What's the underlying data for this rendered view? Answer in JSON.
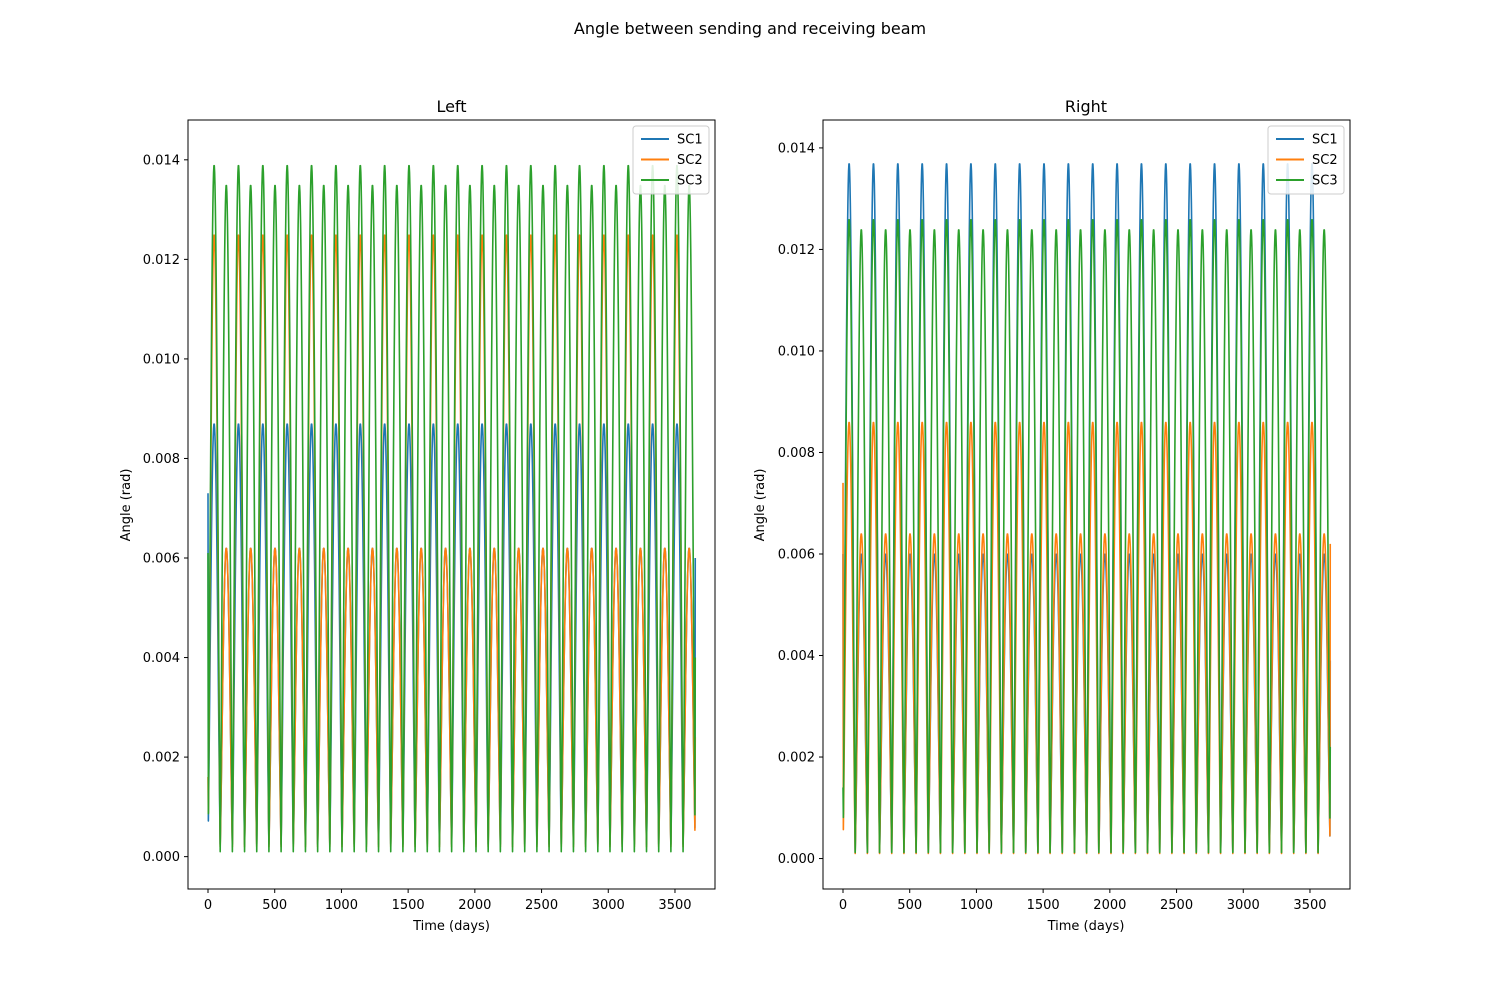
{
  "figure": {
    "suptitle": "Angle between sending and receiving beam"
  },
  "chart_data": [
    {
      "type": "line",
      "title": "Left",
      "xlabel": "Time (days)",
      "ylabel": "Angle (rad)",
      "xlim": [
        -150,
        3800
      ],
      "ylim": [
        -0.00065,
        0.0148
      ],
      "xticks": [
        0,
        500,
        1000,
        1500,
        2000,
        2500,
        3000,
        3500
      ],
      "xtick_labels": [
        "0",
        "500",
        "1000",
        "1500",
        "2000",
        "2500",
        "3000",
        "3500"
      ],
      "yticks": [
        0,
        0.002,
        0.004,
        0.006,
        0.008,
        0.01,
        0.012,
        0.014
      ],
      "ytick_labels": [
        "0.000",
        "0.002",
        "0.004",
        "0.006",
        "0.008",
        "0.010",
        "0.012",
        "0.014"
      ],
      "grid": false,
      "legend": "top-right",
      "x_range": [
        0,
        3652
      ],
      "series": [
        {
          "name": "SC1",
          "color": "#1f77b4",
          "period_days": 182.6,
          "low_peak": 0.0087,
          "high_peak": 0.0062,
          "minimum": 0.00025,
          "start_value": 0.0073,
          "end_value": 0.006
        },
        {
          "name": "SC2",
          "color": "#ff7f0e",
          "period_days": 182.6,
          "low_peak": 0.0125,
          "high_peak": 0.0062,
          "minimum": 0.0002,
          "start_value": 0.0016,
          "end_value": 0.0024
        },
        {
          "name": "SC3",
          "color": "#2ca02c",
          "period_days": 182.6,
          "low_peak": 0.0139,
          "high_peak": 0.0135,
          "minimum": 0.0001,
          "start_value": 0.0061,
          "end_value": 0.004
        }
      ]
    },
    {
      "type": "line",
      "title": "Right",
      "xlabel": "Time (days)",
      "ylabel": "Angle (rad)",
      "xlim": [
        -150,
        3800
      ],
      "ylim": [
        -0.0006,
        0.01455
      ],
      "xticks": [
        0,
        500,
        1000,
        1500,
        2000,
        2500,
        3000,
        3500
      ],
      "xtick_labels": [
        "0",
        "500",
        "1000",
        "1500",
        "2000",
        "2500",
        "3000",
        "3500"
      ],
      "yticks": [
        0,
        0.002,
        0.004,
        0.006,
        0.008,
        0.01,
        0.012,
        0.014
      ],
      "ytick_labels": [
        "0.000",
        "0.002",
        "0.004",
        "0.006",
        "0.008",
        "0.010",
        "0.012",
        "0.014"
      ],
      "grid": false,
      "legend": "top-right",
      "x_range": [
        0,
        3652
      ],
      "series": [
        {
          "name": "SC1",
          "color": "#1f77b4",
          "period_days": 182.6,
          "low_peak": 0.0137,
          "high_peak": 0.006,
          "minimum": 0.00012,
          "start_value": 0.006,
          "end_value": 0.0039
        },
        {
          "name": "SC2",
          "color": "#ff7f0e",
          "period_days": 182.6,
          "low_peak": 0.0086,
          "high_peak": 0.0064,
          "minimum": 0.0001,
          "start_value": 0.0074,
          "end_value": 0.0062
        },
        {
          "name": "SC3",
          "color": "#2ca02c",
          "period_days": 182.6,
          "low_peak": 0.0126,
          "high_peak": 0.0124,
          "minimum": 0.00012,
          "start_value": 0.0014,
          "end_value": 0.0022
        }
      ]
    }
  ]
}
